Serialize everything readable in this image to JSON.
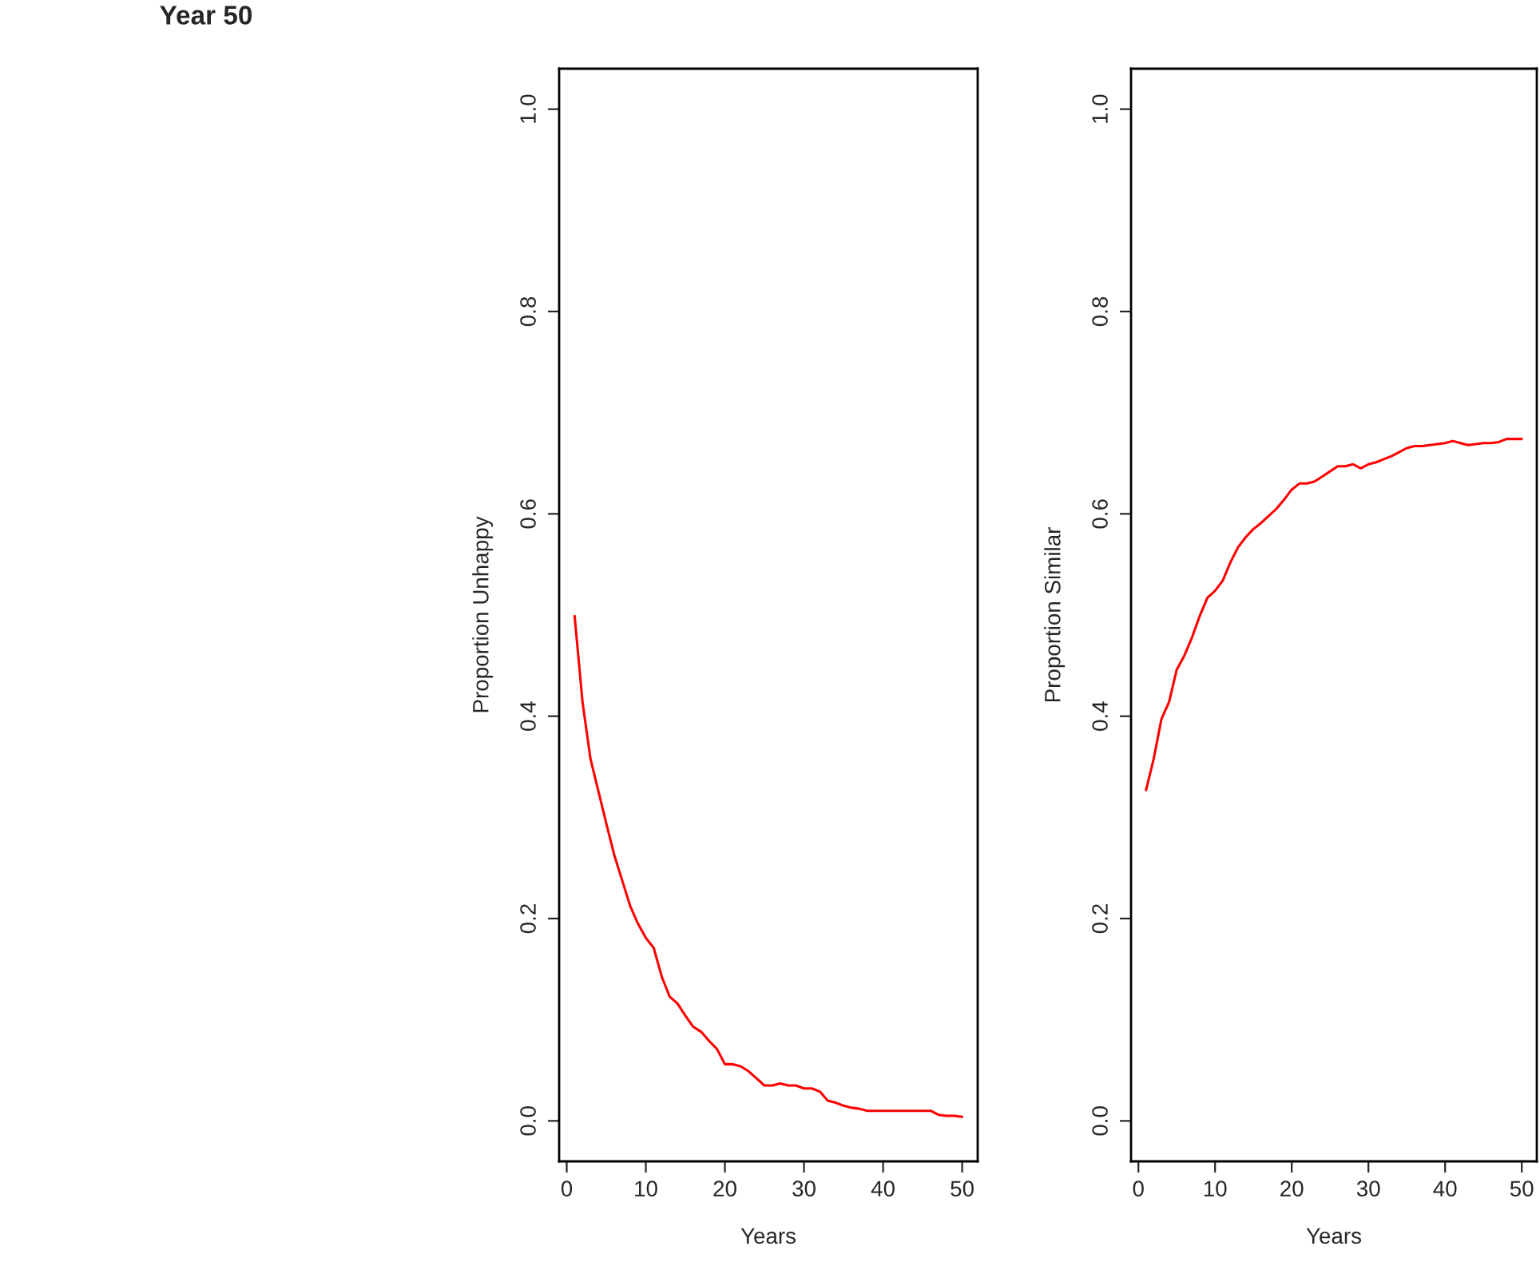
{
  "chart_data": [
    {
      "type": "other",
      "title": "Year 50"
    },
    {
      "type": "line",
      "xlabel": "Years",
      "ylabel": "Proportion Unhappy",
      "grid": false,
      "xlim": [
        -0.96,
        51.96
      ],
      "ylim": [
        -0.04,
        1.04
      ],
      "xticks": [
        0,
        10,
        20,
        30,
        40,
        50
      ],
      "yticks": [
        {
          "value": 0,
          "label": "0.0"
        },
        {
          "value": 0.2,
          "label": "0.2"
        },
        {
          "value": 0.4,
          "label": "0.4"
        },
        {
          "value": 0.6,
          "label": "0.6"
        },
        {
          "value": 0.8,
          "label": "0.8"
        },
        {
          "value": 1,
          "label": "1.0"
        }
      ],
      "x": [
        1,
        2,
        3,
        4,
        5,
        6,
        7,
        8,
        9,
        10,
        11,
        12,
        13,
        14,
        15,
        16,
        17,
        18,
        19,
        20,
        21,
        22,
        23,
        24,
        25,
        26,
        27,
        28,
        29,
        30,
        31,
        32,
        33,
        34,
        35,
        36,
        37,
        38,
        39,
        40,
        41,
        42,
        43,
        44,
        45,
        46,
        47,
        48,
        49,
        50
      ],
      "series": [
        {
          "color": "#ff0000",
          "values": [
            0.499,
            0.414,
            0.358,
            0.326,
            0.294,
            0.263,
            0.238,
            0.213,
            0.195,
            0.181,
            0.171,
            0.143,
            0.123,
            0.116,
            0.104,
            0.093,
            0.088,
            0.079,
            0.071,
            0.056,
            0.056,
            0.054,
            0.049,
            0.042,
            0.035,
            0.035,
            0.037,
            0.035,
            0.035,
            0.032,
            0.032,
            0.029,
            0.02,
            0.018,
            0.015,
            0.013,
            0.012,
            0.01,
            0.01,
            0.01,
            0.01,
            0.01,
            0.01,
            0.01,
            0.01,
            0.01,
            0.006,
            0.005,
            0.005,
            0.004
          ]
        }
      ]
    },
    {
      "type": "line",
      "xlabel": "Years",
      "ylabel": "Proportion Similar",
      "grid": false,
      "xlim": [
        -0.96,
        51.96
      ],
      "ylim": [
        -0.04,
        1.04
      ],
      "xticks": [
        0,
        10,
        20,
        30,
        40,
        50
      ],
      "yticks": [
        {
          "value": 0,
          "label": "0.0"
        },
        {
          "value": 0.2,
          "label": "0.2"
        },
        {
          "value": 0.4,
          "label": "0.4"
        },
        {
          "value": 0.6,
          "label": "0.6"
        },
        {
          "value": 0.8,
          "label": "0.8"
        },
        {
          "value": 1,
          "label": "1.0"
        }
      ],
      "x": [
        1,
        2,
        3,
        4,
        5,
        6,
        7,
        8,
        9,
        10,
        11,
        12,
        13,
        14,
        15,
        16,
        17,
        18,
        19,
        20,
        21,
        22,
        23,
        24,
        25,
        26,
        27,
        28,
        29,
        30,
        31,
        32,
        33,
        34,
        35,
        36,
        37,
        38,
        39,
        40,
        41,
        42,
        43,
        44,
        45,
        46,
        47,
        48,
        49,
        50
      ],
      "series": [
        {
          "color": "#ff0000",
          "values": [
            0.327,
            0.358,
            0.397,
            0.414,
            0.446,
            0.46,
            0.478,
            0.499,
            0.517,
            0.524,
            0.534,
            0.552,
            0.567,
            0.577,
            0.585,
            0.591,
            0.598,
            0.605,
            0.614,
            0.624,
            0.63,
            0.63,
            0.632,
            0.637,
            0.642,
            0.647,
            0.647,
            0.649,
            0.645,
            0.649,
            0.651,
            0.654,
            0.657,
            0.661,
            0.665,
            0.667,
            0.667,
            0.668,
            0.669,
            0.67,
            0.672,
            0.67,
            0.668,
            0.669,
            0.67,
            0.67,
            0.671,
            0.674,
            0.674,
            0.674
          ]
        }
      ]
    }
  ]
}
